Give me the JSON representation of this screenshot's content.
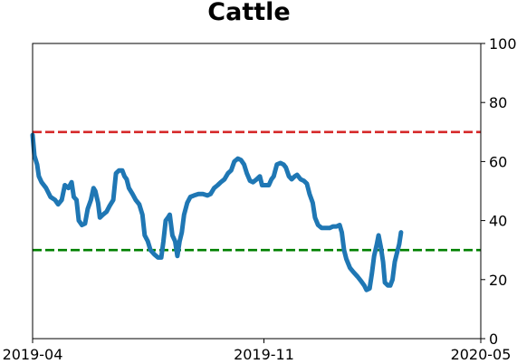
{
  "chart_data": {
    "type": "line",
    "title": "Cattle",
    "xlabel": "",
    "ylabel": "",
    "x_ticks": [
      "2019-04",
      "2019-11",
      "2020-05"
    ],
    "y_ticks": [
      0,
      20,
      40,
      60,
      80,
      100
    ],
    "ylim": [
      0,
      100
    ],
    "y_axis_side": "right",
    "grid": false,
    "legend": "none",
    "reference_lines": [
      {
        "y": 70,
        "color": "#d62728",
        "style": "dashed"
      },
      {
        "y": 30,
        "color": "#008000",
        "style": "dashed"
      }
    ],
    "series": [
      {
        "color": "#1f77b4",
        "points": [
          [
            0.0,
            69
          ],
          [
            0.004,
            62
          ],
          [
            0.01,
            59
          ],
          [
            0.014,
            55
          ],
          [
            0.02,
            53
          ],
          [
            0.03,
            51
          ],
          [
            0.04,
            48
          ],
          [
            0.05,
            47
          ],
          [
            0.057,
            45.5
          ],
          [
            0.065,
            47
          ],
          [
            0.072,
            52
          ],
          [
            0.08,
            51
          ],
          [
            0.087,
            53
          ],
          [
            0.092,
            48
          ],
          [
            0.098,
            47
          ],
          [
            0.103,
            40
          ],
          [
            0.11,
            38.5
          ],
          [
            0.117,
            39
          ],
          [
            0.123,
            44
          ],
          [
            0.13,
            47
          ],
          [
            0.136,
            51
          ],
          [
            0.14,
            50
          ],
          [
            0.146,
            46
          ],
          [
            0.15,
            41
          ],
          [
            0.157,
            42
          ],
          [
            0.165,
            43
          ],
          [
            0.172,
            45
          ],
          [
            0.18,
            47
          ],
          [
            0.186,
            56
          ],
          [
            0.193,
            57
          ],
          [
            0.2,
            57
          ],
          [
            0.205,
            55
          ],
          [
            0.21,
            54
          ],
          [
            0.215,
            51
          ],
          [
            0.223,
            49
          ],
          [
            0.23,
            47
          ],
          [
            0.238,
            45.5
          ],
          [
            0.245,
            42
          ],
          [
            0.25,
            35
          ],
          [
            0.257,
            33
          ],
          [
            0.263,
            30
          ],
          [
            0.272,
            28.5
          ],
          [
            0.28,
            27.5
          ],
          [
            0.287,
            27.5
          ],
          [
            0.292,
            33
          ],
          [
            0.297,
            40
          ],
          [
            0.302,
            41
          ],
          [
            0.306,
            42
          ],
          [
            0.312,
            35
          ],
          [
            0.318,
            33
          ],
          [
            0.323,
            28
          ],
          [
            0.328,
            33
          ],
          [
            0.333,
            36
          ],
          [
            0.338,
            42
          ],
          [
            0.345,
            46
          ],
          [
            0.352,
            48
          ],
          [
            0.36,
            48.5
          ],
          [
            0.37,
            49
          ],
          [
            0.38,
            49
          ],
          [
            0.39,
            48.5
          ],
          [
            0.397,
            49
          ],
          [
            0.405,
            51
          ],
          [
            0.413,
            52
          ],
          [
            0.42,
            53
          ],
          [
            0.428,
            54
          ],
          [
            0.436,
            56
          ],
          [
            0.443,
            57
          ],
          [
            0.45,
            60
          ],
          [
            0.458,
            61
          ],
          [
            0.465,
            60.5
          ],
          [
            0.472,
            59
          ],
          [
            0.478,
            56
          ],
          [
            0.485,
            53.5
          ],
          [
            0.492,
            53
          ],
          [
            0.5,
            54
          ],
          [
            0.507,
            55
          ],
          [
            0.512,
            52
          ],
          [
            0.52,
            52
          ],
          [
            0.527,
            52
          ],
          [
            0.533,
            54
          ],
          [
            0.538,
            55
          ],
          [
            0.545,
            59
          ],
          [
            0.553,
            59.5
          ],
          [
            0.56,
            59
          ],
          [
            0.565,
            58
          ],
          [
            0.572,
            55
          ],
          [
            0.578,
            54
          ],
          [
            0.585,
            55
          ],
          [
            0.59,
            55.5
          ],
          [
            0.598,
            54
          ],
          [
            0.605,
            53.5
          ],
          [
            0.612,
            52.5
          ],
          [
            0.618,
            49
          ],
          [
            0.625,
            46
          ],
          [
            0.63,
            41
          ],
          [
            0.637,
            38.5
          ],
          [
            0.645,
            37.5
          ],
          [
            0.655,
            37.5
          ],
          [
            0.663,
            37.5
          ],
          [
            0.67,
            38
          ],
          [
            0.678,
            38
          ],
          [
            0.685,
            38.5
          ],
          [
            0.69,
            36
          ],
          [
            0.695,
            30
          ],
          [
            0.7,
            27
          ],
          [
            0.708,
            24
          ],
          [
            0.716,
            22.5
          ],
          [
            0.725,
            21
          ],
          [
            0.733,
            19.5
          ],
          [
            0.74,
            18
          ],
          [
            0.745,
            16.5
          ],
          [
            0.752,
            17
          ],
          [
            0.757,
            22
          ],
          [
            0.762,
            28
          ],
          [
            0.768,
            32
          ],
          [
            0.772,
            35
          ],
          [
            0.777,
            31
          ],
          [
            0.782,
            26
          ],
          [
            0.786,
            19
          ],
          [
            0.793,
            18
          ],
          [
            0.798,
            18
          ],
          [
            0.803,
            20
          ],
          [
            0.808,
            26
          ],
          [
            0.813,
            29
          ],
          [
            0.818,
            32
          ],
          [
            0.822,
            36
          ]
        ]
      }
    ]
  }
}
